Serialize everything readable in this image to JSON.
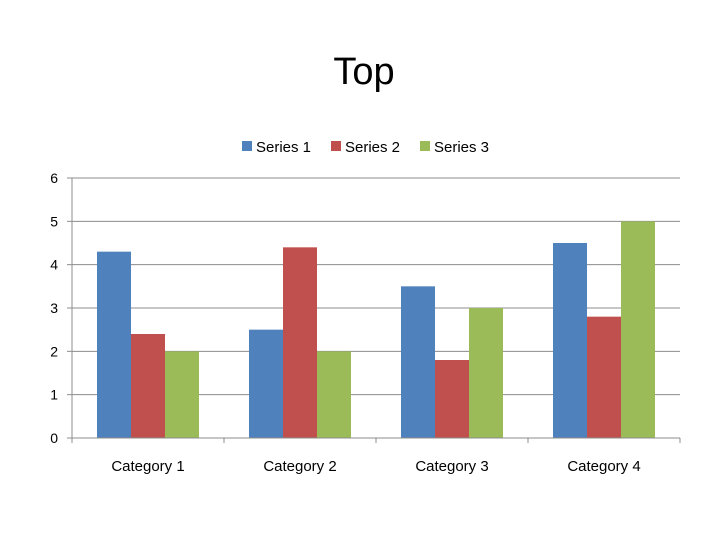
{
  "chart_data": {
    "type": "bar",
    "title": "Top",
    "categories": [
      "Category 1",
      "Category 2",
      "Category 3",
      "Category 4"
    ],
    "series": [
      {
        "name": "Series 1",
        "color": "#4f81bd",
        "values": [
          4.3,
          2.5,
          3.5,
          4.5
        ]
      },
      {
        "name": "Series 2",
        "color": "#c0504d",
        "values": [
          2.4,
          4.4,
          1.8,
          2.8
        ]
      },
      {
        "name": "Series 3",
        "color": "#9bbb59",
        "values": [
          2,
          2,
          3,
          5
        ]
      }
    ],
    "xlabel": "",
    "ylabel": "",
    "ylim": [
      0,
      6
    ],
    "yticks": [
      "0",
      "1",
      "2",
      "3",
      "4",
      "5",
      "6"
    ],
    "grid": true,
    "legend": "top"
  }
}
